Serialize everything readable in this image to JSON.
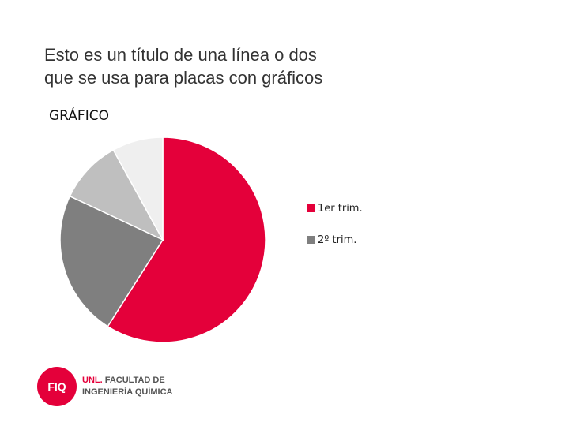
{
  "slide": {
    "title_line1": "Esto es un título de una línea o dos",
    "title_line2": "que se usa para placas con gráficos",
    "chart_heading": "GRÁFICO"
  },
  "chart_data": {
    "type": "pie",
    "categories": [
      "1er trim.",
      "2º trim.",
      "",
      ""
    ],
    "values": [
      59,
      23,
      10,
      8
    ],
    "colors": [
      "#e4003a",
      "#7f7f7f",
      "#bfbfbf",
      "#efefef"
    ],
    "legend": [
      "1er trim.",
      "2º trim."
    ],
    "legend_position": "right"
  },
  "logo": {
    "badge": "FIQ",
    "line1_prefix": "UNL",
    "line1_dot": ".",
    "line1_rest": "FACULTAD DE",
    "line2": "INGENIERÍA QUÍMICA",
    "brand_color": "#e4003a"
  }
}
